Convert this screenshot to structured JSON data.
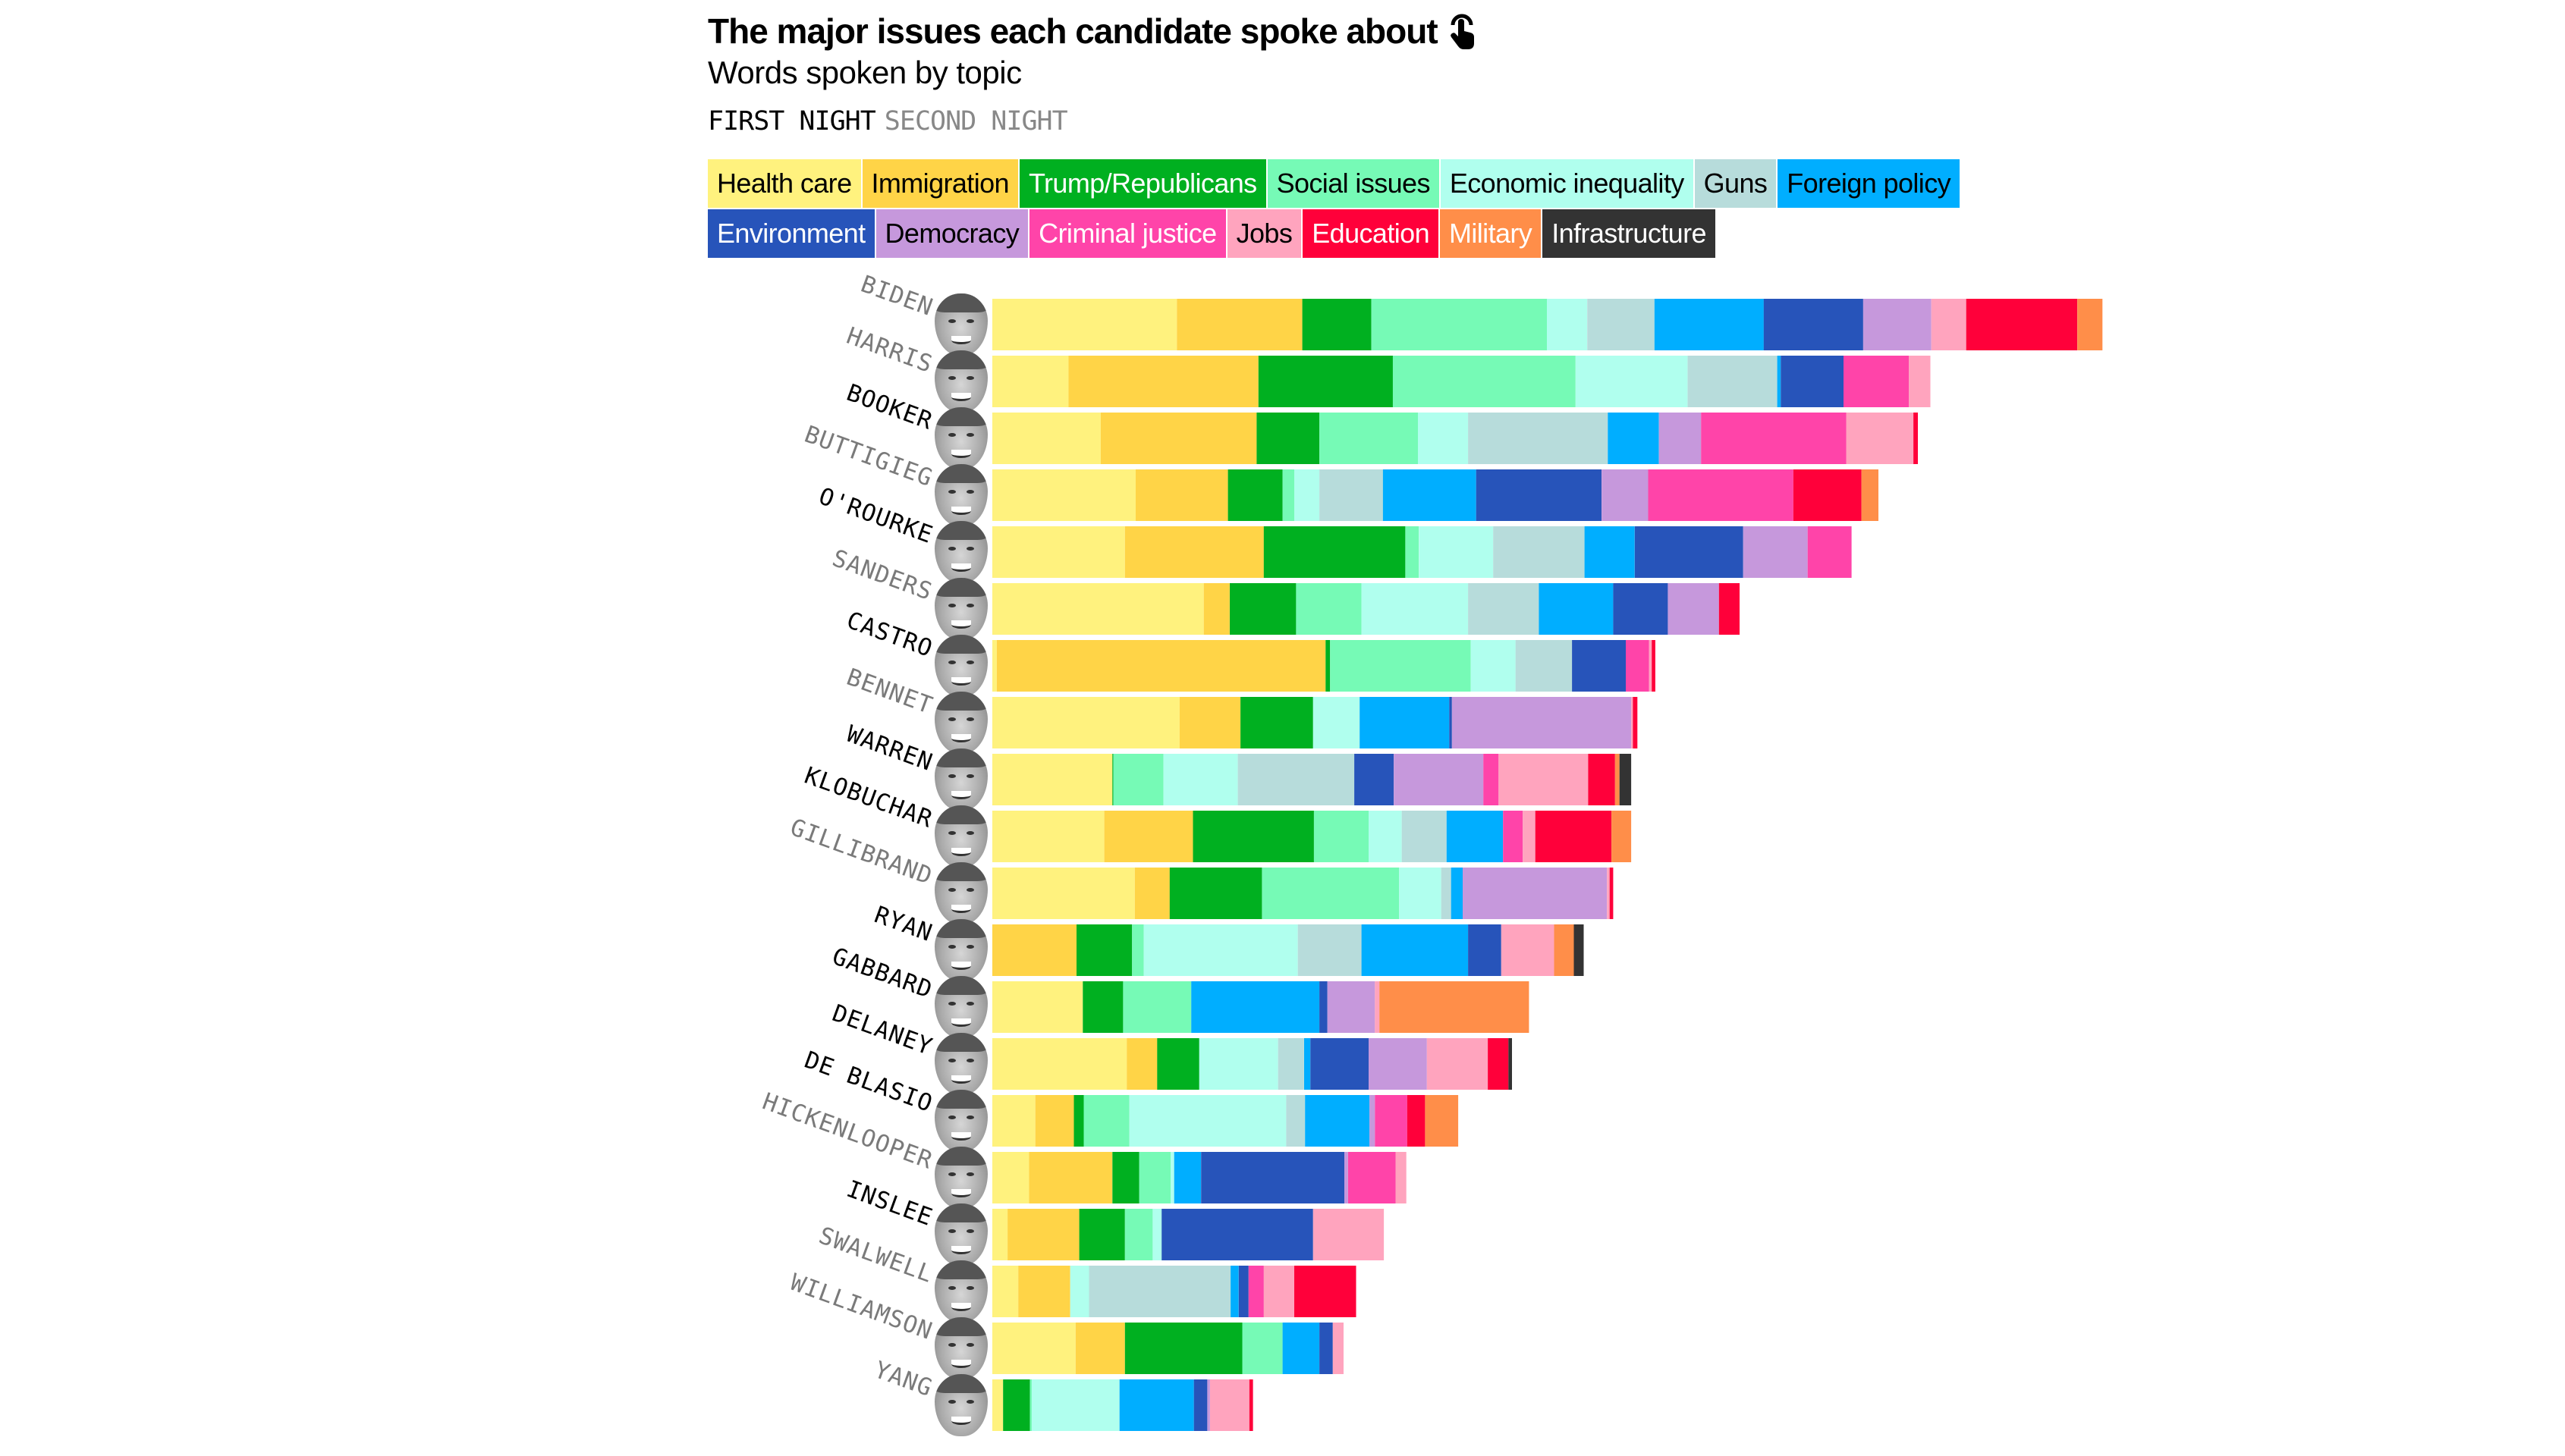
{
  "header": {
    "title": "The major issues each candidate spoke about",
    "title_icon": "tap-icon",
    "subtitle": "Words spoken by topic"
  },
  "nights": [
    {
      "label": "FIRST NIGHT",
      "active": true
    },
    {
      "label": "SECOND NIGHT",
      "active": false
    }
  ],
  "legend": {
    "rows": [
      [
        {
          "topic": "Health care",
          "color": "#FFF27E",
          "text_color": "#000000"
        },
        {
          "topic": "Immigration",
          "color": "#FFD447",
          "text_color": "#000000"
        },
        {
          "topic": "Trump/Republicans",
          "color": "#00B020",
          "text_color": "#FFFFFF"
        },
        {
          "topic": "Social issues",
          "color": "#76FAB6",
          "text_color": "#000000"
        },
        {
          "topic": "Economic inequality",
          "color": "#B0FFEE",
          "text_color": "#000000"
        },
        {
          "topic": "Guns",
          "color": "#B7DCDB",
          "text_color": "#000000"
        },
        {
          "topic": "Foreign policy",
          "color": "#00AEFF",
          "text_color": "#000000"
        }
      ],
      [
        {
          "topic": "Environment",
          "color": "#2754BA",
          "text_color": "#FFFFFF"
        },
        {
          "topic": "Democracy",
          "color": "#C698DC",
          "text_color": "#000000"
        },
        {
          "topic": "Criminal justice",
          "color": "#FF44A9",
          "text_color": "#FFFFFF"
        },
        {
          "topic": "Jobs",
          "color": "#FFA4BE",
          "text_color": "#000000"
        },
        {
          "topic": "Education",
          "color": "#FF003A",
          "text_color": "#FFFFFF"
        },
        {
          "topic": "Military",
          "color": "#FF8E49",
          "text_color": "#FFFFFF"
        },
        {
          "topic": "Infrastructure",
          "color": "#333333",
          "text_color": "#FFFFFF"
        }
      ]
    ]
  },
  "chart_data": {
    "type": "bar",
    "orientation": "horizontal",
    "stacked": true,
    "title": "The major issues each candidate spoke about",
    "subtitle": "Words spoken by topic",
    "xlabel": "",
    "ylabel": "",
    "value_unit": "estimated relative word count (no axis shown)",
    "grid": false,
    "legend_position": "top",
    "topics": [
      "Health care",
      "Immigration",
      "Trump/Republicans",
      "Social issues",
      "Economic inequality",
      "Guns",
      "Foreign policy",
      "Environment",
      "Democracy",
      "Criminal justice",
      "Jobs",
      "Education",
      "Military",
      "Infrastructure"
    ],
    "colors": [
      "#FFF27E",
      "#FFD447",
      "#00B020",
      "#76FAB6",
      "#B0FFEE",
      "#B7DCDB",
      "#00AEFF",
      "#2754BA",
      "#C698DC",
      "#FF44A9",
      "#FFA4BE",
      "#FF003A",
      "#FF8E49",
      "#333333"
    ],
    "categories": [
      "BIDEN",
      "HARRIS",
      "BOOKER",
      "BUTTIGIEG",
      "O'ROURKE",
      "SANDERS",
      "CASTRO",
      "BENNET",
      "WARREN",
      "KLOBUCHAR",
      "GILLIBRAND",
      "RYAN",
      "GABBARD",
      "DELANEY",
      "DE BLASIO",
      "HICKENLOOPER",
      "INSLEE",
      "SWALWELL",
      "WILLIAMSON",
      "YANG"
    ],
    "night": [
      "second",
      "second",
      "first",
      "second",
      "first",
      "second",
      "first",
      "second",
      "first",
      "first",
      "second",
      "first",
      "first",
      "first",
      "first",
      "second",
      "first",
      "second",
      "second",
      "second"
    ],
    "series": [
      {
        "name": "Health care",
        "values": [
          206,
          85,
          121,
          160,
          148,
          236,
          5,
          209,
          134,
          125,
          159,
          0,
          101,
          150,
          48,
          41,
          17,
          29,
          93,
          12
        ]
      },
      {
        "name": "Immigration",
        "values": [
          140,
          212,
          174,
          103,
          155,
          29,
          367,
          68,
          0,
          99,
          39,
          94,
          0,
          34,
          43,
          93,
          80,
          58,
          55,
          0
        ]
      },
      {
        "name": "Trump/Republicans",
        "values": [
          77,
          150,
          70,
          61,
          158,
          74,
          5,
          81,
          1,
          135,
          103,
          62,
          45,
          47,
          11,
          30,
          51,
          0,
          131,
          30
        ]
      },
      {
        "name": "Social issues",
        "values": [
          196,
          204,
          110,
          13,
          15,
          73,
          157,
          0,
          56,
          61,
          153,
          13,
          76,
          0,
          51,
          35,
          31,
          0,
          45,
          2
        ]
      },
      {
        "name": "Economic inequality",
        "values": [
          45,
          125,
          56,
          28,
          83,
          119,
          50,
          52,
          83,
          37,
          47,
          172,
          0,
          88,
          175,
          4,
          10,
          21,
          0,
          98
        ]
      },
      {
        "name": "Guns",
        "values": [
          75,
          100,
          156,
          71,
          102,
          79,
          63,
          0,
          130,
          50,
          11,
          71,
          0,
          29,
          21,
          0,
          0,
          158,
          0,
          0
        ]
      },
      {
        "name": "Foreign policy",
        "values": [
          122,
          4,
          57,
          104,
          56,
          83,
          0,
          100,
          0,
          63,
          13,
          119,
          143,
          7,
          72,
          30,
          0,
          9,
          41,
          83
        ]
      },
      {
        "name": "Environment",
        "values": [
          111,
          70,
          0,
          140,
          121,
          61,
          60,
          3,
          44,
          0,
          0,
          37,
          9,
          65,
          0,
          160,
          169,
          11,
          15,
          15
        ]
      },
      {
        "name": "Democracy",
        "values": [
          76,
          0,
          47,
          52,
          72,
          57,
          0,
          200,
          100,
          0,
          161,
          0,
          53,
          65,
          6,
          4,
          0,
          0,
          0,
          3
        ]
      },
      {
        "name": "Criminal justice",
        "values": [
          0,
          73,
          162,
          162,
          49,
          0,
          26,
          0,
          17,
          22,
          0,
          0,
          0,
          0,
          36,
          53,
          0,
          17,
          0,
          0
        ]
      },
      {
        "name": "Jobs",
        "values": [
          39,
          24,
          75,
          0,
          0,
          0,
          3,
          2,
          100,
          14,
          3,
          59,
          5,
          68,
          0,
          12,
          79,
          34,
          12,
          44
        ]
      },
      {
        "name": "Education",
        "values": [
          124,
          0,
          5,
          76,
          0,
          23,
          4,
          5,
          30,
          85,
          4,
          0,
          0,
          23,
          20,
          0,
          0,
          69,
          0,
          4
        ]
      },
      {
        "name": "Military",
        "values": [
          28,
          0,
          0,
          19,
          0,
          0,
          0,
          0,
          5,
          22,
          0,
          22,
          167,
          0,
          37,
          0,
          0,
          0,
          0,
          0
        ]
      },
      {
        "name": "Infrastructure",
        "values": [
          0,
          0,
          0,
          0,
          0,
          0,
          0,
          0,
          13,
          0,
          0,
          11,
          0,
          4,
          0,
          0,
          0,
          0,
          0,
          0
        ]
      }
    ]
  }
}
